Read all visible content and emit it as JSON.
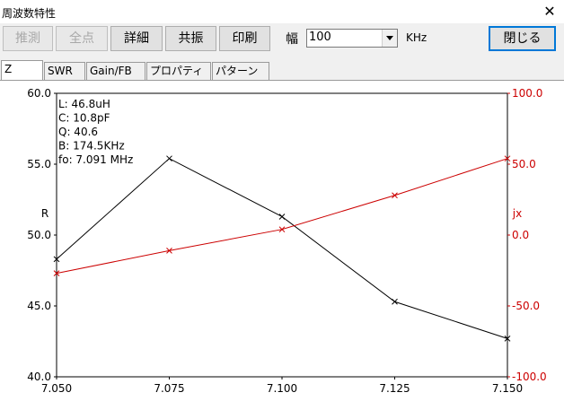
{
  "window": {
    "title": "周波数特性",
    "close_glyph": "✕"
  },
  "toolbar": {
    "buttons": [
      {
        "label": "推測",
        "enabled": false
      },
      {
        "label": "全点",
        "enabled": false
      },
      {
        "label": "詳細",
        "enabled": true
      },
      {
        "label": "共振",
        "enabled": true
      },
      {
        "label": "印刷",
        "enabled": true
      }
    ],
    "width_label": "幅",
    "width_value": "100",
    "width_unit": "KHz",
    "close_label": "閉じる"
  },
  "tabs": [
    {
      "label": "Z",
      "active": true
    },
    {
      "label": "SWR",
      "active": false
    },
    {
      "label": "Gain/FB",
      "active": false
    },
    {
      "label": "プロパティ",
      "active": false
    },
    {
      "label": "パターン",
      "active": false
    }
  ],
  "chart_data": {
    "type": "line",
    "x": [
      7.05,
      7.075,
      7.1,
      7.125,
      7.15
    ],
    "xlim": [
      7.05,
      7.15
    ],
    "x_ticks": [
      "7.050",
      "7.075",
      "7.100",
      "7.125",
      "7.150"
    ],
    "series": [
      {
        "name": "R",
        "axis": "left",
        "color": "#000000",
        "values": [
          48.3,
          55.4,
          51.3,
          45.3,
          42.7
        ]
      },
      {
        "name": "jx",
        "axis": "right",
        "color": "#cc0000",
        "values": [
          -27.0,
          -11.0,
          4.0,
          28.0,
          54.0
        ]
      }
    ],
    "left_axis": {
      "label": "R",
      "lim": [
        40,
        60
      ],
      "ticks": [
        "40.0",
        "45.0",
        "50.0",
        "55.0",
        "60.0"
      ]
    },
    "right_axis": {
      "label": "jx",
      "lim": [
        -100,
        100
      ],
      "ticks": [
        "-100.0",
        "-50.0",
        "0.0",
        "50.0",
        "100.0"
      ]
    },
    "annotations": [
      "L: 46.8uH",
      "C: 10.8pF",
      "Q: 40.6",
      "B: 174.5KHz",
      "fo: 7.091 MHz"
    ],
    "grid": false
  }
}
